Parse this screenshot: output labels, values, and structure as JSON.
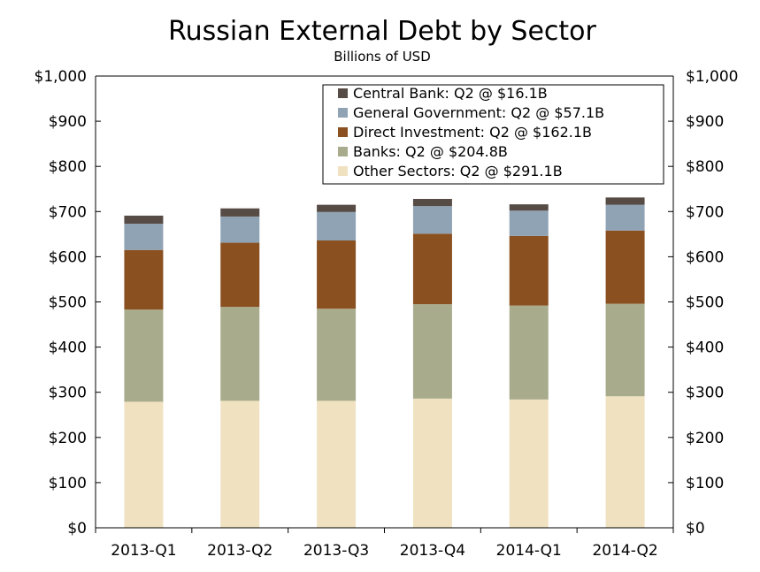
{
  "chart_data": {
    "type": "bar",
    "stacked": true,
    "title": "Russian External Debt by Sector",
    "subtitle": "Billions of USD",
    "xlabel": "",
    "ylabel": "",
    "ylim": [
      0,
      1000
    ],
    "yticks": [
      "$0",
      "$100",
      "$200",
      "$300",
      "$400",
      "$500",
      "$600",
      "$700",
      "$800",
      "$900",
      "$1,000"
    ],
    "ytick_values": [
      0,
      100,
      200,
      300,
      400,
      500,
      600,
      700,
      800,
      900,
      1000
    ],
    "grid": false,
    "legend_position": "top-right",
    "categories": [
      "2013-Q1",
      "2013-Q2",
      "2013-Q3",
      "2013-Q4",
      "2014-Q1",
      "2014-Q2"
    ],
    "series": [
      {
        "name": "Other Sectors",
        "legend": "Other Sectors: Q2 @ $291.1B",
        "color": "#f0e2c0",
        "values": [
          279,
          281,
          281,
          286,
          284,
          291.1
        ]
      },
      {
        "name": "Banks",
        "legend": "Banks: Q2 @ $204.8B",
        "color": "#a9ac8c",
        "values": [
          204,
          208,
          204,
          209,
          208,
          204.8
        ]
      },
      {
        "name": "Direct Investment",
        "legend": "Direct Investment: Q2 @ $162.1B",
        "color": "#8a5020",
        "values": [
          132,
          142,
          151,
          156,
          154,
          162.1
        ]
      },
      {
        "name": "General Government",
        "legend": "General Government: Q2 @ $57.1B",
        "color": "#8fa3b5",
        "values": [
          58,
          58,
          63,
          61,
          56,
          57.1
        ]
      },
      {
        "name": "Central Bank",
        "legend": "Central Bank: Q2 @ $16.1B",
        "color": "#574b45",
        "values": [
          18,
          18,
          16,
          16,
          14,
          16.1
        ]
      }
    ]
  }
}
